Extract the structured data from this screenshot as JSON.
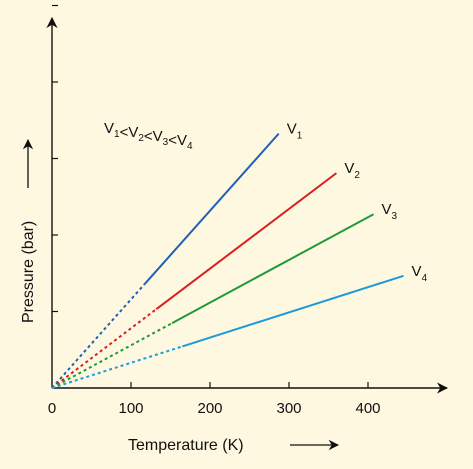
{
  "chart_data": {
    "type": "line",
    "title": "",
    "xlabel": "Temperature (K)",
    "ylabel": "Pressure (bar)",
    "xlim": [
      0,
      500
    ],
    "ylim": [
      0,
      450
    ],
    "xticks": [
      0,
      100,
      200,
      300,
      400
    ],
    "ytick_count": 5,
    "grid": false,
    "annotation": {
      "parts": [
        {
          "text": "V",
          "sub": "1"
        },
        {
          "text": "<V",
          "sub": "2"
        },
        {
          "text": "<V",
          "sub": "3"
        },
        {
          "text": "<V",
          "sub": "4"
        }
      ]
    },
    "series": [
      {
        "name": "V",
        "subscript": "1",
        "color": "#1f5fb8",
        "dashed_to_x": 118,
        "x": [
          0,
          287
        ],
        "y": [
          0,
          322
        ]
      },
      {
        "name": "V",
        "subscript": "2",
        "color": "#d81e1e",
        "dashed_to_x": 132,
        "x": [
          0,
          360
        ],
        "y": [
          0,
          272
        ]
      },
      {
        "name": "V",
        "subscript": "3",
        "color": "#1e9a3a",
        "dashed_to_x": 152,
        "x": [
          0,
          407
        ],
        "y": [
          0,
          220
        ]
      },
      {
        "name": "V",
        "subscript": "4",
        "color": "#1e9ad8",
        "dashed_to_x": 165,
        "x": [
          0,
          445
        ],
        "y": [
          0,
          142
        ]
      }
    ]
  }
}
